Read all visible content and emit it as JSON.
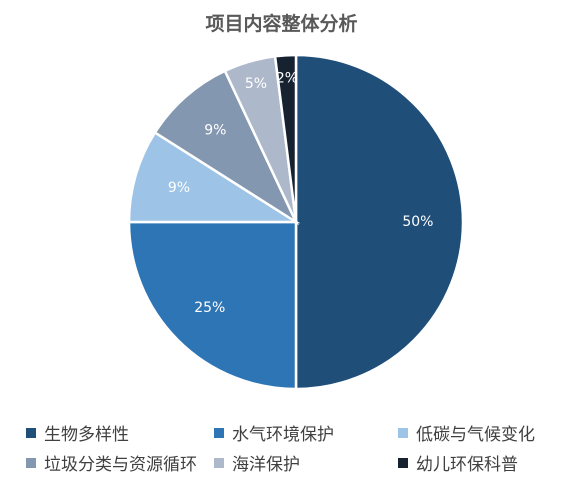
{
  "chart_data": {
    "type": "pie",
    "title": "项目内容整体分析",
    "categories": [
      "生物多样性",
      "水气环境保护",
      "低碳与气候变化",
      "垃圾分类与资源循环",
      "海洋保护",
      "幼儿环保科普"
    ],
    "values": [
      50,
      25,
      9,
      9,
      5,
      2
    ],
    "value_labels": [
      "50%",
      "25%",
      "9%",
      "9%",
      "5%",
      "2%"
    ],
    "colors": [
      "#1F4E79",
      "#2E75B6",
      "#9DC3E6",
      "#8497B0",
      "#ADB9CA",
      "#172231"
    ],
    "legend_position": "bottom"
  }
}
